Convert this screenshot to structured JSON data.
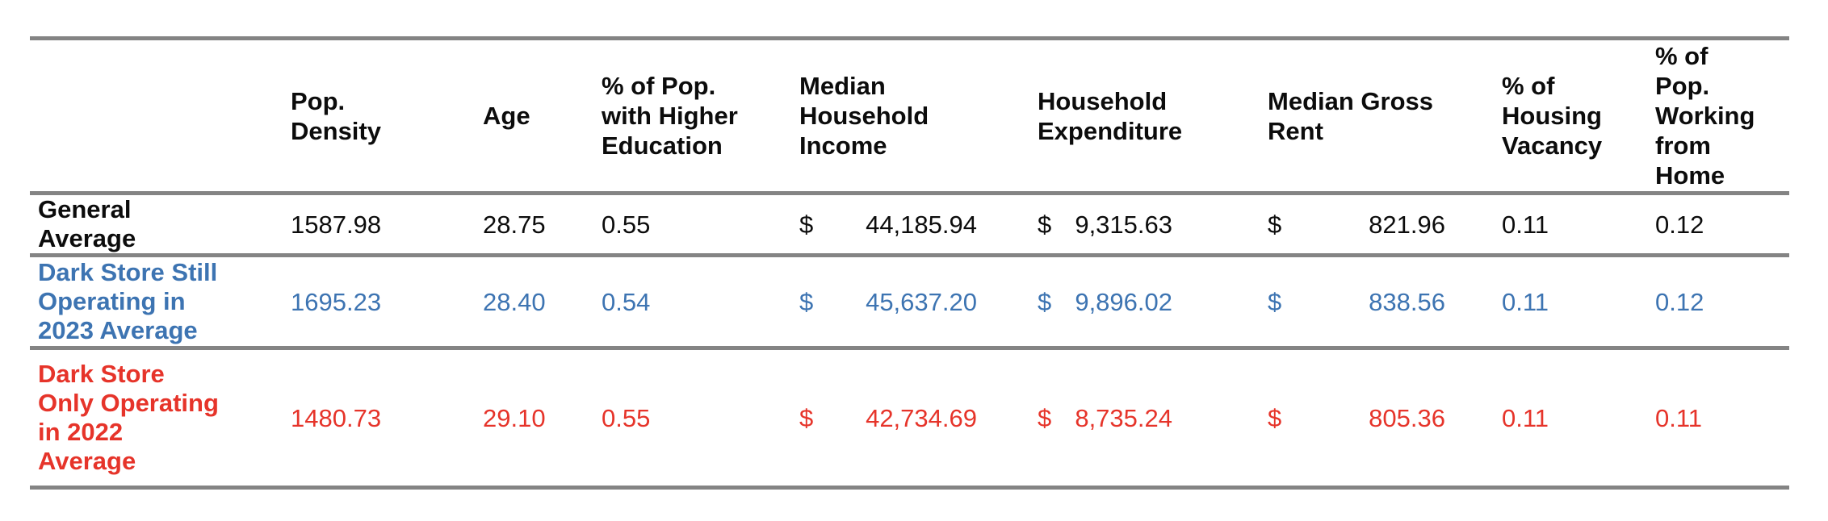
{
  "table": {
    "currency_symbol": "$",
    "columns": [
      {
        "label": ""
      },
      {
        "label": "Pop.\nDensity"
      },
      {
        "label": "Age"
      },
      {
        "label": "% of Pop.\nwith Higher\nEducation"
      },
      {
        "label": "Median\nHousehold\nIncome"
      },
      {
        "label": "Household\nExpenditure"
      },
      {
        "label": "Median Gross\nRent"
      },
      {
        "label": "% of\nHousing\nVacancy"
      },
      {
        "label": "% of\nPop.\nWorking\nfrom\nHome"
      }
    ],
    "rows": [
      {
        "label": "General\nAverage",
        "color": "#0c0c0c",
        "pop_density": "1587.98",
        "age": "28.75",
        "pct_higher_education": "0.55",
        "median_household_income": "44,185.94",
        "household_expenditure": "9,315.63",
        "median_gross_rent": "821.96",
        "pct_housing_vacancy": "0.11",
        "pct_working_from_home": "0.12"
      },
      {
        "label": "Dark Store Still\nOperating in\n2023 Average",
        "color": "#3D74B2",
        "pop_density": "1695.23",
        "age": "28.40",
        "pct_higher_education": "0.54",
        "median_household_income": "45,637.20",
        "household_expenditure": "9,896.02",
        "median_gross_rent": "838.56",
        "pct_housing_vacancy": "0.11",
        "pct_working_from_home": "0.12"
      },
      {
        "label": "Dark Store\nOnly Operating\nin 2022\nAverage",
        "color": "#E6342A",
        "pop_density": "1480.73",
        "age": "29.10",
        "pct_higher_education": "0.55",
        "median_household_income": "42,734.69",
        "household_expenditure": "8,735.24",
        "median_gross_rent": "805.36",
        "pct_housing_vacancy": "0.11",
        "pct_working_from_home": "0.11"
      }
    ]
  }
}
